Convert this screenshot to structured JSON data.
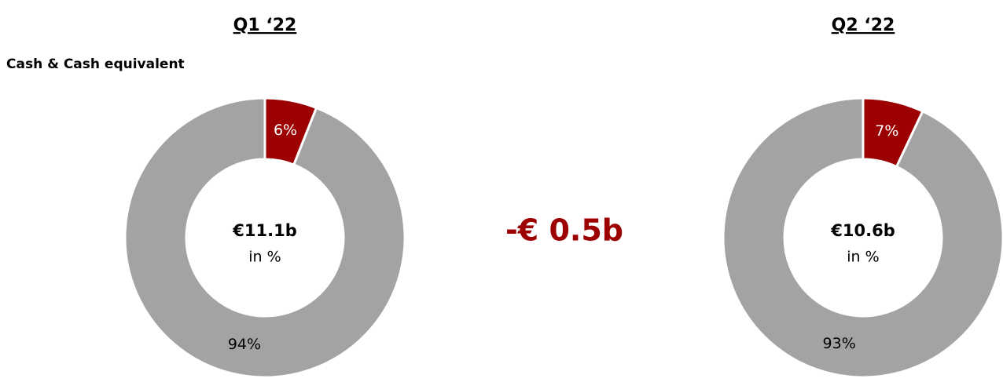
{
  "subtitle": "Cash & Cash equivalent",
  "annotation": "-€ 0.5b",
  "chart_data": [
    {
      "type": "pie",
      "title": "Q1 ‘22",
      "center_label": "€11.1b",
      "center_sublabel": "in %",
      "values": [
        6,
        94
      ],
      "value_labels": [
        "6%",
        "94%"
      ],
      "colors": [
        "#9c0000",
        "#a3a3a3"
      ]
    },
    {
      "type": "pie",
      "title": "Q2 ‘22",
      "center_label": "€10.6b",
      "center_sublabel": "in %",
      "values": [
        7,
        93
      ],
      "value_labels": [
        "7%",
        "93%"
      ],
      "colors": [
        "#9c0000",
        "#a3a3a3"
      ]
    }
  ]
}
